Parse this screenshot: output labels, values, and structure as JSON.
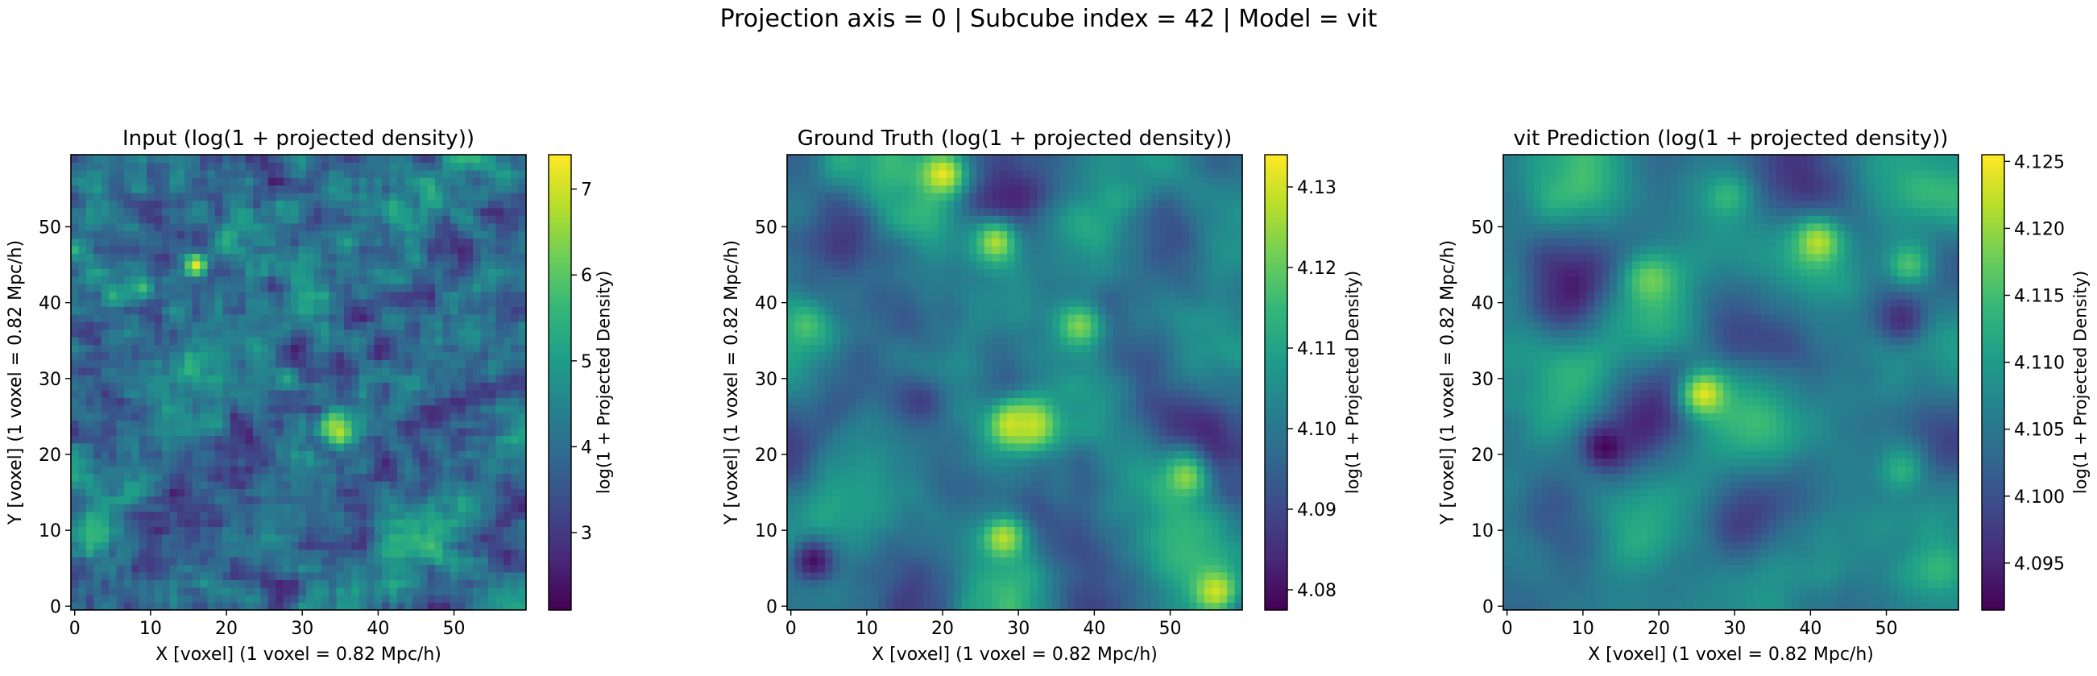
{
  "figure": {
    "suptitle": "Projection axis = 0 | Subcube index = 42 | Model = vit"
  },
  "colormap": {
    "name": "viridis",
    "stops": [
      "#440154",
      "#482878",
      "#3e4989",
      "#31688e",
      "#26828e",
      "#1f9e89",
      "#35b779",
      "#6ece58",
      "#b5de2b",
      "#fde725"
    ]
  },
  "chart_data": [
    {
      "type": "heatmap",
      "title": "Input (log(1 + projected density))",
      "xlabel": "X [voxel] (1 voxel = 0.82 Mpc/h)",
      "ylabel": "Y [voxel] (1 voxel = 0.82 Mpc/h)",
      "colorbar_label": "log(1 + Projected Density)",
      "grid_size": 60,
      "xlim": [
        -0.5,
        59.5
      ],
      "ylim": [
        -0.5,
        59.5
      ],
      "xticks": [
        0,
        10,
        20,
        30,
        40,
        50
      ],
      "yticks": [
        0,
        10,
        20,
        30,
        40,
        50
      ],
      "vmin": 2.1,
      "vmax": 7.4,
      "cbar_ticks": [
        3,
        4,
        5,
        6,
        7
      ],
      "cbar_tick_labels": [
        "3",
        "4",
        "5",
        "6",
        "7"
      ],
      "colorbar": true,
      "peaks": [
        {
          "x": 16,
          "y": 45,
          "v": 7.2
        },
        {
          "x": 35,
          "y": 23,
          "v": 7.0
        },
        {
          "x": 34,
          "y": 24,
          "v": 6.5
        },
        {
          "x": 9,
          "y": 42,
          "v": 5.8
        },
        {
          "x": 5,
          "y": 41,
          "v": 5.5
        },
        {
          "x": 28,
          "y": 30,
          "v": 5.3
        },
        {
          "x": 36,
          "y": 48,
          "v": 5.2
        },
        {
          "x": 50,
          "y": 6,
          "v": 5.0
        },
        {
          "x": 56,
          "y": 1,
          "v": 5.0
        },
        {
          "x": 45,
          "y": 46,
          "v": 4.9
        },
        {
          "x": 32,
          "y": 2,
          "v": 4.8
        }
      ]
    },
    {
      "type": "heatmap",
      "title": "Ground Truth (log(1 + projected density))",
      "xlabel": "X [voxel] (1 voxel = 0.82 Mpc/h)",
      "ylabel": "Y [voxel] (1 voxel = 0.82 Mpc/h)",
      "colorbar_label": "log(1 + Projected Density)",
      "grid_size": 60,
      "xlim": [
        -0.5,
        59.5
      ],
      "ylim": [
        -0.5,
        59.5
      ],
      "xticks": [
        0,
        10,
        20,
        30,
        40,
        50
      ],
      "yticks": [
        0,
        10,
        20,
        30,
        40,
        50
      ],
      "vmin": 4.0775,
      "vmax": 4.134,
      "cbar_ticks": [
        4.08,
        4.09,
        4.1,
        4.11,
        4.12,
        4.13
      ],
      "cbar_tick_labels": [
        "4.08",
        "4.09",
        "4.10",
        "4.11",
        "4.12",
        "4.13"
      ],
      "colorbar": true,
      "peaks": [
        {
          "x": 20,
          "y": 57,
          "v": 4.132
        },
        {
          "x": 29,
          "y": 24,
          "v": 4.13
        },
        {
          "x": 32,
          "y": 24,
          "v": 4.129
        },
        {
          "x": 27,
          "y": 48,
          "v": 4.127
        },
        {
          "x": 28,
          "y": 9,
          "v": 4.128
        },
        {
          "x": 56,
          "y": 2,
          "v": 4.13
        },
        {
          "x": 52,
          "y": 17,
          "v": 4.124
        },
        {
          "x": 38,
          "y": 37,
          "v": 4.123
        },
        {
          "x": 2,
          "y": 37,
          "v": 4.118
        },
        {
          "x": 3,
          "y": 6,
          "v": 4.08
        },
        {
          "x": 17,
          "y": 27,
          "v": 4.088
        }
      ]
    },
    {
      "type": "heatmap",
      "title": "vit Prediction (log(1 + projected density))",
      "xlabel": "X [voxel] (1 voxel = 0.82 Mpc/h)",
      "ylabel": "Y [voxel] (1 voxel = 0.82 Mpc/h)",
      "colorbar_label": "log(1 + Projected Density)",
      "grid_size": 60,
      "xlim": [
        -0.5,
        59.5
      ],
      "ylim": [
        -0.5,
        59.5
      ],
      "xticks": [
        0,
        10,
        20,
        30,
        40,
        50
      ],
      "yticks": [
        0,
        10,
        20,
        30,
        40,
        50
      ],
      "vmin": 4.0915,
      "vmax": 4.1255,
      "cbar_ticks": [
        4.095,
        4.1,
        4.105,
        4.11,
        4.115,
        4.12,
        4.125
      ],
      "cbar_tick_labels": [
        "4.095",
        "4.100",
        "4.105",
        "4.110",
        "4.115",
        "4.120",
        "4.125"
      ],
      "colorbar": true,
      "peaks": [
        {
          "x": 26,
          "y": 28,
          "v": 4.124
        },
        {
          "x": 41,
          "y": 48,
          "v": 4.122
        },
        {
          "x": 19,
          "y": 43,
          "v": 4.118
        },
        {
          "x": 53,
          "y": 45,
          "v": 4.116
        },
        {
          "x": 13,
          "y": 21,
          "v": 4.092
        },
        {
          "x": 52,
          "y": 18,
          "v": 4.113
        },
        {
          "x": 29,
          "y": 54,
          "v": 4.114
        },
        {
          "x": 57,
          "y": 5,
          "v": 4.114
        },
        {
          "x": 52,
          "y": 38,
          "v": 4.096
        }
      ]
    }
  ]
}
